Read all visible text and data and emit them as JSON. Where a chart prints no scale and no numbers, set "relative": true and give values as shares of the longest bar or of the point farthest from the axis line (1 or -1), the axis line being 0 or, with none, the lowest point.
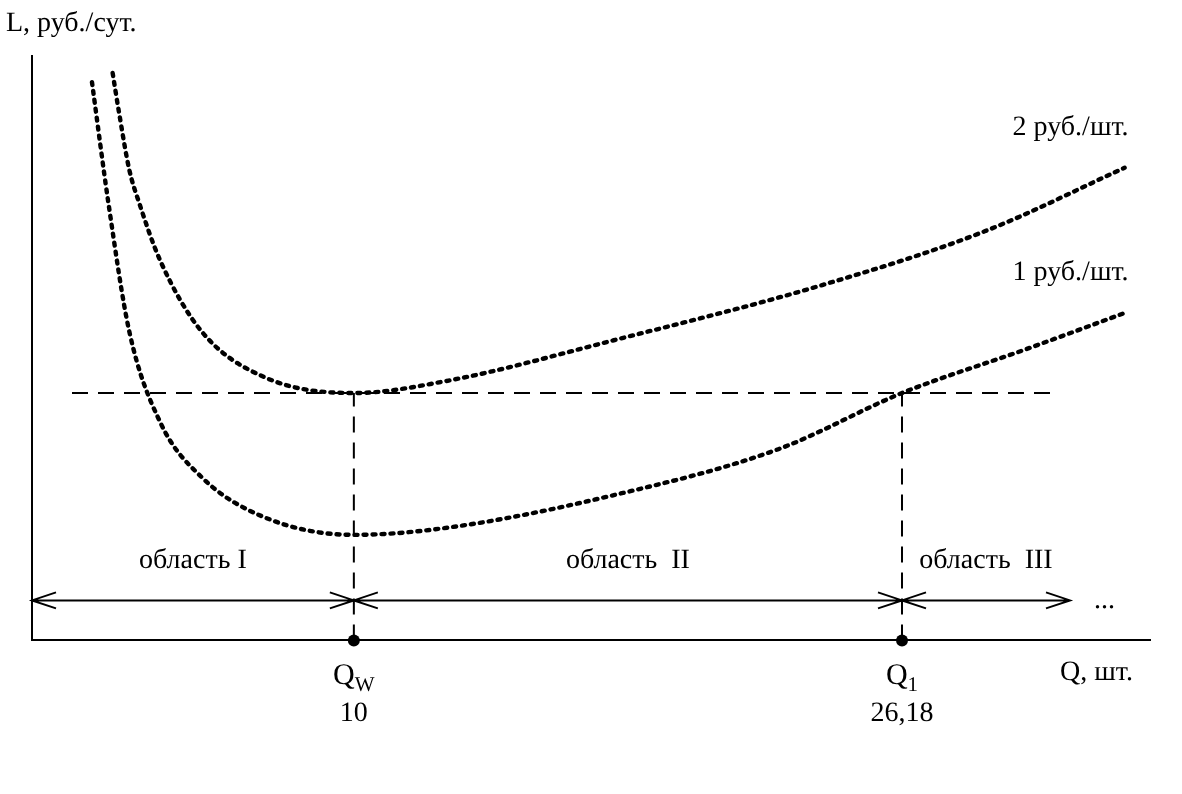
{
  "chart_data": {
    "type": "line",
    "relative": true,
    "xlabel": "Q, шт.",
    "ylabel": "L, руб./сут.",
    "xlim": [
      0.5,
      33.5
    ],
    "xticks": [
      {
        "value": 10,
        "label": "10"
      },
      {
        "value": 26.18,
        "label": "26,18"
      }
    ],
    "tick_labels": "x",
    "grid": false,
    "legend": false,
    "marker": "none",
    "line_style": "dotted",
    "series": [
      {
        "name": "2 руб./шт.",
        "color": "#000000",
        "x": [
          2.88,
          3.07,
          3.37,
          3.67,
          4.28,
          5.5,
          7.32,
          10,
          12.8,
          17.67,
          23.75,
          28.62,
          32.75
        ],
        "values": [
          1,
          0.93,
          0.83,
          0.77,
          0.67,
          0.545,
          0.465,
          0.436,
          0.458,
          0.529,
          0.625,
          0.721,
          0.833
        ]
      },
      {
        "name": "1 руб./шт.",
        "color": "#000000",
        "x": [
          2.27,
          2.76,
          3.37,
          4.28,
          5.5,
          7.32,
          10,
          12.8,
          17.67,
          22.53,
          26.18,
          29.83,
          32.75
        ],
        "values": [
          0.984,
          0.769,
          0.545,
          0.385,
          0.288,
          0.218,
          0.186,
          0.199,
          0.256,
          0.337,
          0.436,
          0.513,
          0.577
        ]
      }
    ],
    "ref_lines": [
      {
        "axis": "y",
        "value": 0.436,
        "line_style": "dashed"
      },
      {
        "axis": "x",
        "value": 10,
        "line_style": "dashed"
      },
      {
        "axis": "x",
        "value": 26.18,
        "line_style": "dashed"
      }
    ],
    "annotations": [
      "Q$_{W}$",
      "Q$_{1}$",
      "область I",
      "область  II",
      "область  III",
      "..."
    ]
  }
}
